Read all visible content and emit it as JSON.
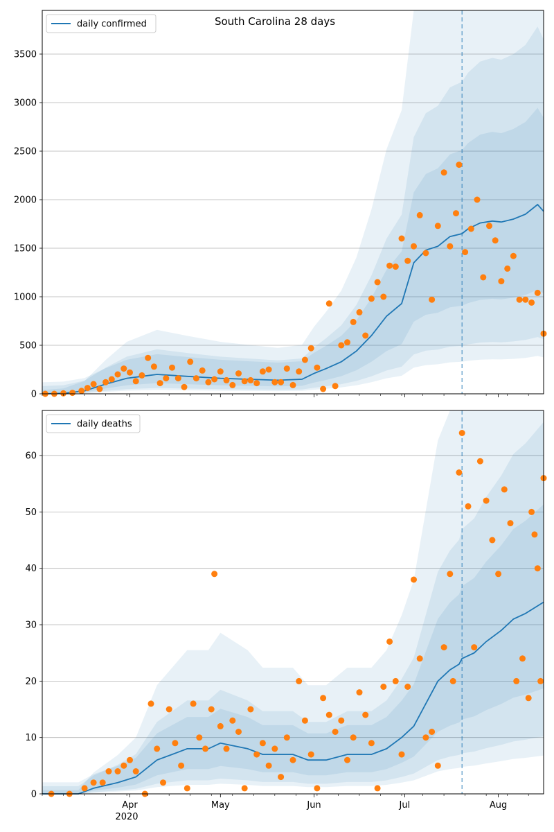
{
  "chart_data": [
    {
      "type": "line",
      "title": "South Carolina 28 days",
      "xlabel": "",
      "ylabel": "",
      "ylim": [
        0,
        3950
      ],
      "yticks": [
        0,
        500,
        1000,
        1500,
        2000,
        2500,
        3000,
        3500
      ],
      "xlim": [
        "2020-03-03",
        "2020-08-16"
      ],
      "forecast_start": "2020-07-20",
      "grid": "horizontal",
      "legend": "top-left",
      "series": [
        {
          "name": "daily confirmed",
          "kind": "line",
          "color": "#1f77b4",
          "points": [
            [
              "2020-03-03",
              0
            ],
            [
              "2020-03-10",
              5
            ],
            [
              "2020-03-17",
              30
            ],
            [
              "2020-03-24",
              100
            ],
            [
              "2020-03-31",
              160
            ],
            [
              "2020-04-05",
              180
            ],
            [
              "2020-04-10",
              200
            ],
            [
              "2020-04-20",
              180
            ],
            [
              "2020-05-01",
              160
            ],
            [
              "2020-05-10",
              150
            ],
            [
              "2020-05-20",
              140
            ],
            [
              "2020-05-28",
              150
            ],
            [
              "2020-06-01",
              210
            ],
            [
              "2020-06-05",
              260
            ],
            [
              "2020-06-10",
              330
            ],
            [
              "2020-06-15",
              440
            ],
            [
              "2020-06-20",
              600
            ],
            [
              "2020-06-25",
              800
            ],
            [
              "2020-06-30",
              930
            ],
            [
              "2020-07-04",
              1350
            ],
            [
              "2020-07-08",
              1480
            ],
            [
              "2020-07-12",
              1520
            ],
            [
              "2020-07-16",
              1620
            ],
            [
              "2020-07-20",
              1650
            ],
            [
              "2020-07-22",
              1700
            ],
            [
              "2020-07-26",
              1760
            ],
            [
              "2020-07-30",
              1780
            ],
            [
              "2020-08-02",
              1770
            ],
            [
              "2020-08-06",
              1800
            ],
            [
              "2020-08-10",
              1850
            ],
            [
              "2020-08-14",
              1950
            ],
            [
              "2020-08-16",
              1880
            ]
          ]
        },
        {
          "name": "",
          "kind": "scatter",
          "color": "#ff7f0e",
          "points": [
            [
              "2020-03-04",
              0
            ],
            [
              "2020-03-07",
              0
            ],
            [
              "2020-03-10",
              5
            ],
            [
              "2020-03-13",
              10
            ],
            [
              "2020-03-16",
              30
            ],
            [
              "2020-03-18",
              60
            ],
            [
              "2020-03-20",
              100
            ],
            [
              "2020-03-22",
              50
            ],
            [
              "2020-03-24",
              120
            ],
            [
              "2020-03-26",
              150
            ],
            [
              "2020-03-28",
              200
            ],
            [
              "2020-03-30",
              260
            ],
            [
              "2020-04-01",
              220
            ],
            [
              "2020-04-03",
              130
            ],
            [
              "2020-04-05",
              190
            ],
            [
              "2020-04-07",
              370
            ],
            [
              "2020-04-09",
              280
            ],
            [
              "2020-04-11",
              110
            ],
            [
              "2020-04-13",
              160
            ],
            [
              "2020-04-15",
              270
            ],
            [
              "2020-04-17",
              160
            ],
            [
              "2020-04-19",
              70
            ],
            [
              "2020-04-21",
              330
            ],
            [
              "2020-04-23",
              160
            ],
            [
              "2020-04-25",
              240
            ],
            [
              "2020-04-27",
              120
            ],
            [
              "2020-04-29",
              150
            ],
            [
              "2020-05-01",
              230
            ],
            [
              "2020-05-03",
              140
            ],
            [
              "2020-05-05",
              90
            ],
            [
              "2020-05-07",
              210
            ],
            [
              "2020-05-09",
              130
            ],
            [
              "2020-05-11",
              140
            ],
            [
              "2020-05-13",
              110
            ],
            [
              "2020-05-15",
              230
            ],
            [
              "2020-05-17",
              250
            ],
            [
              "2020-05-19",
              120
            ],
            [
              "2020-05-21",
              120
            ],
            [
              "2020-05-23",
              260
            ],
            [
              "2020-05-25",
              90
            ],
            [
              "2020-05-27",
              230
            ],
            [
              "2020-05-29",
              350
            ],
            [
              "2020-05-31",
              470
            ],
            [
              "2020-06-02",
              270
            ],
            [
              "2020-06-04",
              50
            ],
            [
              "2020-06-06",
              930
            ],
            [
              "2020-06-08",
              80
            ],
            [
              "2020-06-10",
              500
            ],
            [
              "2020-06-12",
              530
            ],
            [
              "2020-06-14",
              740
            ],
            [
              "2020-06-16",
              840
            ],
            [
              "2020-06-18",
              600
            ],
            [
              "2020-06-20",
              980
            ],
            [
              "2020-06-22",
              1150
            ],
            [
              "2020-06-24",
              1000
            ],
            [
              "2020-06-26",
              1320
            ],
            [
              "2020-06-28",
              1310
            ],
            [
              "2020-06-30",
              1600
            ],
            [
              "2020-07-02",
              1370
            ],
            [
              "2020-07-04",
              1520
            ],
            [
              "2020-07-06",
              1840
            ],
            [
              "2020-07-08",
              1450
            ],
            [
              "2020-07-10",
              970
            ],
            [
              "2020-07-12",
              1730
            ],
            [
              "2020-07-14",
              2280
            ],
            [
              "2020-07-16",
              1520
            ],
            [
              "2020-07-18",
              1860
            ],
            [
              "2020-07-19",
              2360
            ],
            [
              "2020-07-21",
              1460
            ],
            [
              "2020-07-23",
              1700
            ],
            [
              "2020-07-25",
              2000
            ],
            [
              "2020-07-27",
              1200
            ],
            [
              "2020-07-29",
              1730
            ],
            [
              "2020-07-31",
              1580
            ],
            [
              "2020-08-02",
              1160
            ],
            [
              "2020-08-04",
              1290
            ],
            [
              "2020-08-06",
              1420
            ],
            [
              "2020-08-08",
              970
            ],
            [
              "2020-08-10",
              970
            ],
            [
              "2020-08-12",
              940
            ],
            [
              "2020-08-14",
              1040
            ],
            [
              "2020-08-16",
              620
            ]
          ]
        }
      ]
    },
    {
      "type": "line",
      "title": "",
      "xlabel": "",
      "ylabel": "",
      "ylim": [
        0,
        68
      ],
      "yticks": [
        0,
        10,
        20,
        30,
        40,
        50,
        60
      ],
      "xlim": [
        "2020-03-03",
        "2020-08-16"
      ],
      "forecast_start": "2020-07-20",
      "grid": "horizontal",
      "legend": "top-left",
      "xticks": [
        "Apr",
        "May",
        "Jun",
        "Jul",
        "Aug"
      ],
      "xtick_year": "2020",
      "series": [
        {
          "name": "daily deaths",
          "kind": "line",
          "color": "#1f77b4",
          "points": [
            [
              "2020-03-03",
              0
            ],
            [
              "2020-03-15",
              0
            ],
            [
              "2020-03-20",
              1
            ],
            [
              "2020-03-28",
              2
            ],
            [
              "2020-04-03",
              3
            ],
            [
              "2020-04-10",
              6
            ],
            [
              "2020-04-15",
              7
            ],
            [
              "2020-04-20",
              8
            ],
            [
              "2020-04-27",
              8
            ],
            [
              "2020-05-01",
              9
            ],
            [
              "2020-05-10",
              8
            ],
            [
              "2020-05-15",
              7
            ],
            [
              "2020-05-25",
              7
            ],
            [
              "2020-05-30",
              6
            ],
            [
              "2020-06-05",
              6
            ],
            [
              "2020-06-12",
              7
            ],
            [
              "2020-06-20",
              7
            ],
            [
              "2020-06-25",
              8
            ],
            [
              "2020-06-30",
              10
            ],
            [
              "2020-07-04",
              12
            ],
            [
              "2020-07-08",
              16
            ],
            [
              "2020-07-12",
              20
            ],
            [
              "2020-07-16",
              22
            ],
            [
              "2020-07-19",
              23
            ],
            [
              "2020-07-20",
              24
            ],
            [
              "2020-07-24",
              25
            ],
            [
              "2020-07-28",
              27
            ],
            [
              "2020-08-02",
              29
            ],
            [
              "2020-08-06",
              31
            ],
            [
              "2020-08-10",
              32
            ],
            [
              "2020-08-16",
              34
            ]
          ]
        },
        {
          "name": "",
          "kind": "scatter",
          "color": "#ff7f0e",
          "points": [
            [
              "2020-03-06",
              0
            ],
            [
              "2020-03-12",
              0
            ],
            [
              "2020-03-17",
              1
            ],
            [
              "2020-03-20",
              2
            ],
            [
              "2020-03-23",
              2
            ],
            [
              "2020-03-25",
              4
            ],
            [
              "2020-03-28",
              4
            ],
            [
              "2020-03-30",
              5
            ],
            [
              "2020-04-01",
              6
            ],
            [
              "2020-04-03",
              4
            ],
            [
              "2020-04-06",
              0
            ],
            [
              "2020-04-08",
              16
            ],
            [
              "2020-04-10",
              8
            ],
            [
              "2020-04-12",
              2
            ],
            [
              "2020-04-14",
              15
            ],
            [
              "2020-04-16",
              9
            ],
            [
              "2020-04-18",
              5
            ],
            [
              "2020-04-20",
              1
            ],
            [
              "2020-04-22",
              16
            ],
            [
              "2020-04-24",
              10
            ],
            [
              "2020-04-26",
              8
            ],
            [
              "2020-04-28",
              15
            ],
            [
              "2020-04-29",
              39
            ],
            [
              "2020-05-01",
              12
            ],
            [
              "2020-05-03",
              8
            ],
            [
              "2020-05-05",
              13
            ],
            [
              "2020-05-07",
              11
            ],
            [
              "2020-05-09",
              1
            ],
            [
              "2020-05-11",
              15
            ],
            [
              "2020-05-13",
              7
            ],
            [
              "2020-05-15",
              9
            ],
            [
              "2020-05-17",
              5
            ],
            [
              "2020-05-19",
              8
            ],
            [
              "2020-05-21",
              3
            ],
            [
              "2020-05-23",
              10
            ],
            [
              "2020-05-25",
              6
            ],
            [
              "2020-05-27",
              20
            ],
            [
              "2020-05-29",
              13
            ],
            [
              "2020-05-31",
              7
            ],
            [
              "2020-06-02",
              1
            ],
            [
              "2020-06-04",
              17
            ],
            [
              "2020-06-06",
              14
            ],
            [
              "2020-06-08",
              11
            ],
            [
              "2020-06-10",
              13
            ],
            [
              "2020-06-12",
              6
            ],
            [
              "2020-06-14",
              10
            ],
            [
              "2020-06-16",
              18
            ],
            [
              "2020-06-18",
              14
            ],
            [
              "2020-06-20",
              9
            ],
            [
              "2020-06-22",
              1
            ],
            [
              "2020-06-24",
              19
            ],
            [
              "2020-06-26",
              27
            ],
            [
              "2020-06-28",
              20
            ],
            [
              "2020-06-30",
              7
            ],
            [
              "2020-07-02",
              19
            ],
            [
              "2020-07-04",
              38
            ],
            [
              "2020-07-06",
              24
            ],
            [
              "2020-07-08",
              10
            ],
            [
              "2020-07-10",
              11
            ],
            [
              "2020-07-12",
              5
            ],
            [
              "2020-07-14",
              26
            ],
            [
              "2020-07-16",
              39
            ],
            [
              "2020-07-17",
              20
            ],
            [
              "2020-07-19",
              57
            ],
            [
              "2020-07-20",
              64
            ],
            [
              "2020-07-22",
              51
            ],
            [
              "2020-07-24",
              26
            ],
            [
              "2020-07-26",
              59
            ],
            [
              "2020-07-28",
              52
            ],
            [
              "2020-07-30",
              45
            ],
            [
              "2020-08-01",
              39
            ],
            [
              "2020-08-03",
              54
            ],
            [
              "2020-08-05",
              48
            ],
            [
              "2020-08-07",
              20
            ],
            [
              "2020-08-09",
              24
            ],
            [
              "2020-08-11",
              17
            ],
            [
              "2020-08-12",
              50
            ],
            [
              "2020-08-13",
              46
            ],
            [
              "2020-08-14",
              40
            ],
            [
              "2020-08-15",
              20
            ],
            [
              "2020-08-16",
              56
            ]
          ]
        }
      ]
    }
  ]
}
